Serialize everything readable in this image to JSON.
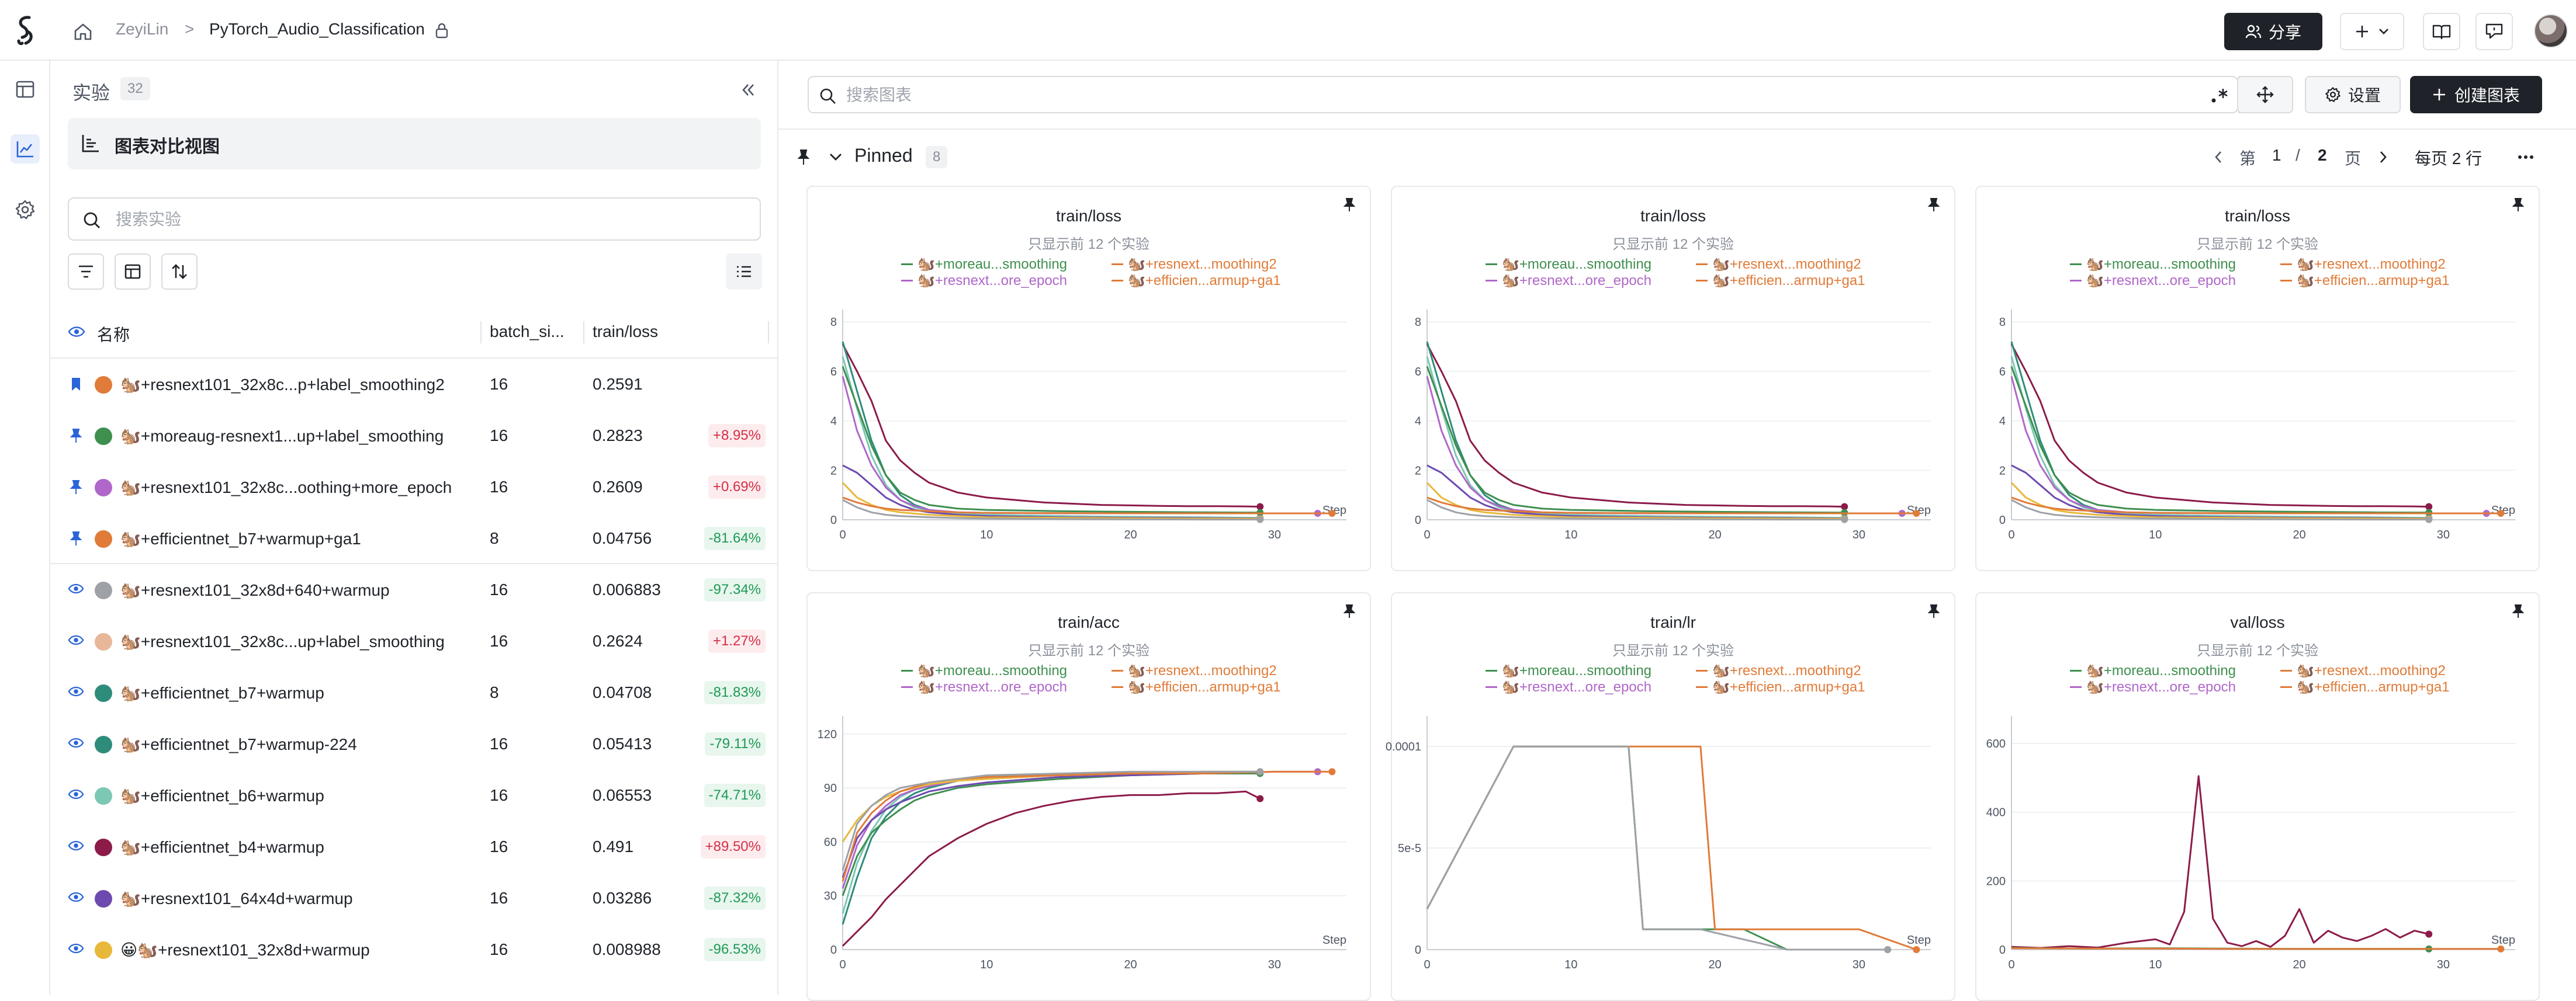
{
  "topbar": {
    "user": "ZeyiLin",
    "separator": ">",
    "project": "PyTorch_Audio_Classification",
    "share_label": "分享"
  },
  "experiments": {
    "title": "实验",
    "count": "32",
    "chart_view_label": "图表对比视图",
    "search_placeholder": "搜索实验",
    "columns": [
      "名称",
      "batch_si...",
      "train/loss"
    ],
    "rows": [
      {
        "status": "bookmark",
        "color": "#e07b39",
        "name": "🐿️+resnext101_32x8c...p+label_smoothing2",
        "batch": "16",
        "loss": "0.2591",
        "delta": "",
        "delta_type": ""
      },
      {
        "status": "pin",
        "color": "#3f8f4f",
        "name": "🐿️+moreaug-resnext1...up+label_smoothing",
        "batch": "16",
        "loss": "0.2823",
        "delta": "+8.95%",
        "delta_type": "pos"
      },
      {
        "status": "pin",
        "color": "#b067c9",
        "name": "🐿️+resnext101_32x8c...oothing+more_epoch",
        "batch": "16",
        "loss": "0.2609",
        "delta": "+0.69%",
        "delta_type": "pos"
      },
      {
        "status": "pin",
        "color": "#e07b39",
        "name": "🐿️+efficientnet_b7+warmup+ga1",
        "batch": "8",
        "loss": "0.04756",
        "delta": "-81.64%",
        "delta_type": "neg"
      },
      {
        "status": "eye",
        "color": "#9ea1a6",
        "name": "🐿️+resnext101_32x8d+640+warmup",
        "batch": "16",
        "loss": "0.006883",
        "delta": "-97.34%",
        "delta_type": "neg"
      },
      {
        "status": "eye",
        "color": "#e8b79a",
        "name": "🐿️+resnext101_32x8c...up+label_smoothing",
        "batch": "16",
        "loss": "0.2624",
        "delta": "+1.27%",
        "delta_type": "pos"
      },
      {
        "status": "eye",
        "color": "#2e8c7a",
        "name": "🐿️+efficientnet_b7+warmup",
        "batch": "8",
        "loss": "0.04708",
        "delta": "-81.83%",
        "delta_type": "neg"
      },
      {
        "status": "eye",
        "color": "#2e8c7a",
        "name": "🐿️+efficientnet_b7+warmup-224",
        "batch": "16",
        "loss": "0.05413",
        "delta": "-79.11%",
        "delta_type": "neg"
      },
      {
        "status": "eye",
        "color": "#7cc7b5",
        "name": "🐿️+efficientnet_b6+warmup",
        "batch": "16",
        "loss": "0.06553",
        "delta": "-74.71%",
        "delta_type": "neg"
      },
      {
        "status": "eye",
        "color": "#8c1b4a",
        "name": "🐿️+efficientnet_b4+warmup",
        "batch": "16",
        "loss": "0.491",
        "delta": "+89.50%",
        "delta_type": "pos"
      },
      {
        "status": "eye",
        "color": "#6d4ab0",
        "name": "🐿️+resnext101_64x4d+warmup",
        "batch": "16",
        "loss": "0.03286",
        "delta": "-87.32%",
        "delta_type": "neg"
      },
      {
        "status": "eye",
        "color": "#e8b83a",
        "name": "😀🐿️+resnext101_32x8d+warmup",
        "batch": "16",
        "loss": "0.008988",
        "delta": "-96.53%",
        "delta_type": "neg"
      }
    ]
  },
  "main": {
    "search_placeholder": "搜索图表",
    "settings_label": "设置",
    "create_label": "创建图表",
    "pinned_label": "Pinned",
    "pinned_count": "8",
    "pager": {
      "prefix": "第",
      "page": "1",
      "slash": "/",
      "total": "2",
      "suffix": "页",
      "per_page": "每页 2 行"
    }
  },
  "legend_subtitle": "只显示前 12 个实验",
  "legend_entries": [
    {
      "label": "🐿️+moreau...smoothing",
      "color": "#3f8f4f"
    },
    {
      "label": "🐿️+resnext...moothing2",
      "color": "#e07b39"
    },
    {
      "label": "🐿️+resnext...ore_epoch",
      "color": "#b067c9"
    },
    {
      "label": "🐿️+efficien...armup+ga1",
      "color": "#e07b39"
    }
  ],
  "chart_data": [
    {
      "type": "line",
      "title": "train/loss",
      "xlabel": "Step",
      "xlim": [
        0,
        35
      ],
      "ylim": [
        0,
        8.5
      ],
      "xticks": [
        "0",
        "10",
        "20",
        "30"
      ],
      "yticks": [
        "0",
        "2",
        "4",
        "6",
        "8"
      ],
      "series": [
        {
          "color": "#8c1b4a",
          "x": [
            0,
            1,
            2,
            3,
            4,
            5,
            6,
            8,
            10,
            12,
            14,
            16,
            18,
            20,
            22,
            24,
            26,
            28,
            29
          ],
          "y": [
            7.1,
            6,
            4.8,
            3.2,
            2.4,
            1.9,
            1.5,
            1.1,
            0.9,
            0.8,
            0.7,
            0.65,
            0.6,
            0.58,
            0.56,
            0.55,
            0.55,
            0.54,
            0.53
          ]
        },
        {
          "color": "#2e8c7a",
          "x": [
            0,
            1,
            2,
            3,
            4,
            5,
            6,
            8,
            10,
            15,
            20,
            25,
            29
          ],
          "y": [
            7.2,
            5.2,
            3.2,
            1.8,
            1.0,
            0.6,
            0.4,
            0.25,
            0.2,
            0.15,
            0.1,
            0.08,
            0.07
          ]
        },
        {
          "color": "#7cc7b5",
          "x": [
            0,
            1,
            2,
            3,
            4,
            5,
            6,
            8,
            10,
            15,
            20,
            25,
            29
          ],
          "y": [
            6.6,
            4.5,
            2.6,
            1.4,
            0.8,
            0.5,
            0.35,
            0.25,
            0.2,
            0.15,
            0.12,
            0.1,
            0.08
          ]
        },
        {
          "color": "#3f8f4f",
          "x": [
            0,
            1,
            2,
            3,
            4,
            5,
            6,
            8,
            10,
            15,
            20,
            25,
            29
          ],
          "y": [
            6.2,
            4.6,
            3.0,
            1.8,
            1.1,
            0.8,
            0.6,
            0.45,
            0.4,
            0.35,
            0.32,
            0.3,
            0.29
          ]
        },
        {
          "color": "#b067c9",
          "x": [
            0,
            1,
            2,
            3,
            4,
            5,
            6,
            8,
            10,
            15,
            20,
            25,
            30,
            33
          ],
          "y": [
            5.8,
            3.6,
            2.2,
            1.3,
            0.8,
            0.55,
            0.4,
            0.3,
            0.28,
            0.26,
            0.26,
            0.26,
            0.26,
            0.26
          ]
        },
        {
          "color": "#6d4ab0",
          "x": [
            0,
            1,
            2,
            3,
            4,
            5,
            6,
            8,
            10,
            15,
            20,
            25,
            29
          ],
          "y": [
            2.2,
            1.9,
            1.4,
            0.9,
            0.6,
            0.4,
            0.3,
            0.2,
            0.15,
            0.1,
            0.08,
            0.07,
            0.05
          ]
        },
        {
          "color": "#e8b83a",
          "x": [
            0,
            1,
            2,
            3,
            4,
            6,
            8,
            10,
            15,
            20,
            25,
            29
          ],
          "y": [
            1.5,
            0.9,
            0.6,
            0.4,
            0.3,
            0.2,
            0.15,
            0.1,
            0.08,
            0.06,
            0.05,
            0.04
          ]
        },
        {
          "color": "#e07b39",
          "x": [
            0,
            1,
            2,
            3,
            4,
            6,
            8,
            10,
            15,
            20,
            25,
            30,
            34
          ],
          "y": [
            0.9,
            0.7,
            0.55,
            0.45,
            0.4,
            0.35,
            0.3,
            0.28,
            0.27,
            0.26,
            0.26,
            0.26,
            0.26
          ]
        },
        {
          "color": "#9ea1a6",
          "x": [
            0,
            1,
            2,
            3,
            4,
            6,
            8,
            10,
            15,
            20,
            25,
            29
          ],
          "y": [
            0.8,
            0.5,
            0.3,
            0.2,
            0.15,
            0.1,
            0.07,
            0.05,
            0.03,
            0.02,
            0.01,
            0.01
          ]
        }
      ]
    },
    {
      "type": "line",
      "title": "train/loss",
      "xlabel": "Step",
      "xlim": [
        0,
        35
      ],
      "ylim": [
        0,
        8.5
      ],
      "xticks": [
        "0",
        "10",
        "20",
        "30"
      ],
      "yticks": [
        "0",
        "2",
        "4",
        "6",
        "8"
      ],
      "series": "same-as-0"
    },
    {
      "type": "line",
      "title": "train/loss",
      "xlabel": "Step",
      "xlim": [
        0,
        35
      ],
      "ylim": [
        0,
        8.5
      ],
      "xticks": [
        "0",
        "10",
        "20",
        "30"
      ],
      "yticks": [
        "0",
        "2",
        "4",
        "6",
        "8"
      ],
      "series": "same-as-0"
    },
    {
      "type": "line",
      "title": "train/acc",
      "xlabel": "Step",
      "xlim": [
        0,
        35
      ],
      "ylim": [
        0,
        130
      ],
      "xticks": [
        "0",
        "10",
        "20",
        "30"
      ],
      "yticks": [
        "0",
        "30",
        "60",
        "90",
        "120"
      ],
      "series": [
        {
          "color": "#8c1b4a",
          "x": [
            0,
            1,
            2,
            3,
            4,
            5,
            6,
            8,
            10,
            12,
            14,
            16,
            18,
            20,
            22,
            24,
            26,
            28,
            29
          ],
          "y": [
            2,
            10,
            18,
            28,
            36,
            44,
            52,
            62,
            70,
            76,
            80,
            83,
            85,
            86,
            86,
            87,
            87,
            88,
            84
          ]
        },
        {
          "color": "#2e8c7a",
          "x": [
            0,
            1,
            2,
            3,
            4,
            5,
            6,
            8,
            10,
            15,
            20,
            25,
            29
          ],
          "y": [
            14,
            40,
            62,
            74,
            82,
            87,
            90,
            94,
            96,
            98,
            98,
            99,
            99
          ]
        },
        {
          "color": "#7cc7b5",
          "x": [
            0,
            1,
            2,
            3,
            4,
            5,
            6,
            8,
            10,
            15,
            20,
            25,
            29
          ],
          "y": [
            20,
            48,
            66,
            78,
            85,
            89,
            91,
            94,
            96,
            97,
            98,
            99,
            99
          ]
        },
        {
          "color": "#3f8f4f",
          "x": [
            0,
            1,
            2,
            3,
            4,
            5,
            6,
            8,
            10,
            15,
            20,
            25,
            29
          ],
          "y": [
            30,
            52,
            65,
            72,
            78,
            83,
            86,
            90,
            92,
            95,
            97,
            98,
            98
          ]
        },
        {
          "color": "#b067c9",
          "x": [
            0,
            1,
            2,
            3,
            4,
            5,
            6,
            8,
            10,
            15,
            20,
            25,
            30,
            33
          ],
          "y": [
            34,
            58,
            72,
            80,
            86,
            89,
            91,
            94,
            95,
            97,
            98,
            98,
            99,
            99
          ]
        },
        {
          "color": "#6d4ab0",
          "x": [
            0,
            1,
            2,
            3,
            4,
            5,
            6,
            8,
            10,
            15,
            20,
            25,
            29
          ],
          "y": [
            40,
            62,
            72,
            78,
            82,
            85,
            88,
            91,
            93,
            96,
            97,
            98,
            99
          ]
        },
        {
          "color": "#e8b83a",
          "x": [
            0,
            1,
            2,
            3,
            4,
            6,
            8,
            10,
            15,
            20,
            25,
            29
          ],
          "y": [
            60,
            72,
            80,
            85,
            88,
            92,
            94,
            95,
            97,
            98,
            99,
            99
          ]
        },
        {
          "color": "#e07b39",
          "x": [
            0,
            1,
            2,
            3,
            4,
            6,
            8,
            10,
            15,
            20,
            25,
            30,
            34
          ],
          "y": [
            38,
            65,
            76,
            83,
            88,
            93,
            95,
            96,
            97,
            98,
            98,
            99,
            99
          ]
        },
        {
          "color": "#9ea1a6",
          "x": [
            0,
            1,
            2,
            3,
            4,
            6,
            8,
            10,
            15,
            20,
            25,
            29
          ],
          "y": [
            44,
            70,
            80,
            86,
            90,
            93,
            95,
            97,
            98,
            99,
            99,
            99
          ]
        }
      ]
    },
    {
      "type": "line",
      "title": "train/lr",
      "xlabel": "Step",
      "xlim": [
        0,
        35
      ],
      "ylim": [
        0,
        0.000115
      ],
      "xticks": [
        "0",
        "10",
        "20",
        "30"
      ],
      "yticks": [
        "0",
        "5e-5",
        "0.0001"
      ],
      "ytick_values": [
        0,
        5e-05,
        0.0001
      ],
      "series": [
        {
          "color": "#3f8f4f",
          "x": [
            0,
            6,
            14,
            15,
            19,
            20,
            22,
            25,
            29,
            32
          ],
          "y": [
            2e-05,
            0.0001,
            0.0001,
            1e-05,
            1e-05,
            1e-05,
            1e-05,
            0,
            0,
            0
          ]
        },
        {
          "color": "#e07b39",
          "x": [
            0,
            6,
            19,
            20,
            22,
            25,
            30,
            34
          ],
          "y": [
            2e-05,
            0.0001,
            0.0001,
            1e-05,
            1e-05,
            1e-05,
            1e-05,
            0
          ]
        },
        {
          "color": "#9ea1a6",
          "x": [
            0,
            6,
            14,
            15,
            19,
            25,
            29,
            32
          ],
          "y": [
            2e-05,
            0.0001,
            0.0001,
            1e-05,
            1e-05,
            0,
            0,
            0
          ]
        }
      ]
    },
    {
      "type": "line",
      "title": "val/loss",
      "xlabel": "Step",
      "xlim": [
        0,
        35
      ],
      "ylim": [
        0,
        680
      ],
      "xticks": [
        "0",
        "10",
        "20",
        "30"
      ],
      "yticks": [
        "0",
        "200",
        "400",
        "600"
      ],
      "series": [
        {
          "color": "#8c1b4a",
          "x": [
            0,
            2,
            4,
            6,
            8,
            10,
            11,
            12,
            13,
            14,
            15,
            16,
            17,
            18,
            19,
            20,
            21,
            22,
            23,
            24,
            25,
            26,
            27,
            28,
            29
          ],
          "y": [
            8,
            5,
            10,
            6,
            20,
            30,
            15,
            110,
            505,
            90,
            20,
            10,
            25,
            8,
            40,
            118,
            20,
            55,
            35,
            25,
            40,
            60,
            35,
            55,
            45
          ]
        },
        {
          "color": "#3f8f4f",
          "x": [
            0,
            5,
            10,
            15,
            20,
            25,
            29
          ],
          "y": [
            5,
            3,
            4,
            3,
            2,
            2,
            2
          ]
        },
        {
          "color": "#e07b39",
          "x": [
            0,
            5,
            10,
            15,
            20,
            25,
            30,
            34
          ],
          "y": [
            4,
            3,
            3,
            2,
            2,
            2,
            2,
            2
          ]
        }
      ]
    }
  ]
}
